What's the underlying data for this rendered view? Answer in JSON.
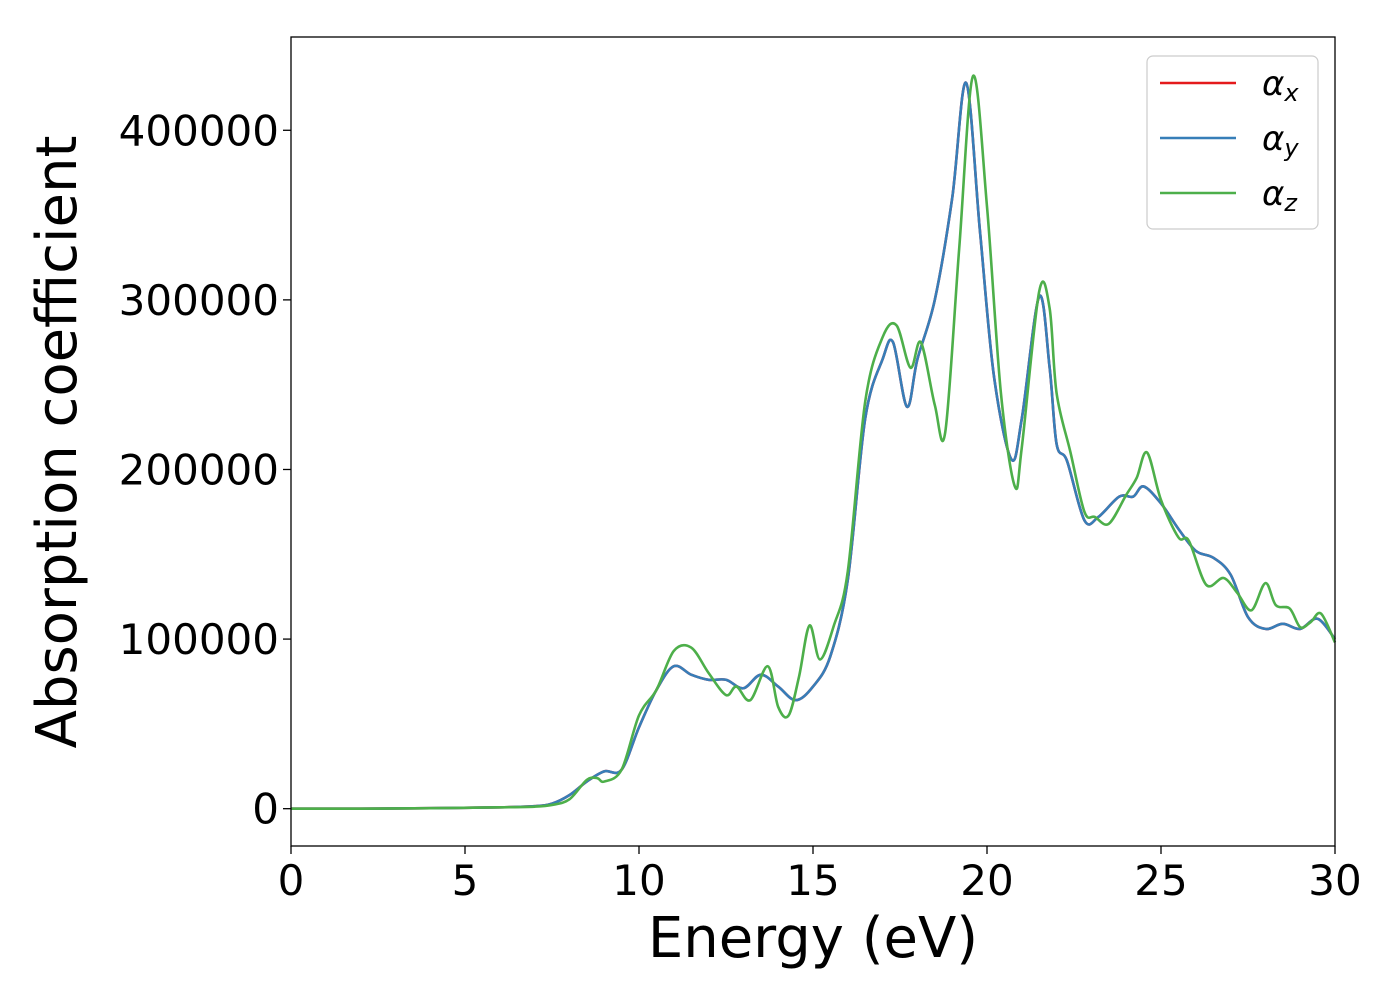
{
  "chart_data": {
    "type": "line",
    "title": "",
    "xlabel": "Energy (eV)",
    "ylabel": "Absorption coefficient",
    "xlim": [
      0,
      30
    ],
    "ylim": [
      -22000,
      455000
    ],
    "xticks": [
      0,
      5,
      10,
      15,
      20,
      25,
      30
    ],
    "yticks": [
      0,
      100000,
      200000,
      300000,
      400000
    ],
    "grid": false,
    "legend_position": "top-right",
    "series": [
      {
        "name": "α",
        "subscript": "x",
        "color": "#e41a1c",
        "x": [
          0,
          2,
          4,
          6,
          7,
          7.5,
          8,
          8.5,
          9,
          9.5,
          10,
          10.5,
          11,
          11.5,
          12,
          12.5,
          13,
          13.5,
          14,
          14.5,
          15,
          15.5,
          16,
          16.5,
          17,
          17.3,
          17.7,
          18,
          18.5,
          19,
          19.4,
          19.8,
          20.2,
          20.7,
          21,
          21.5,
          21.8,
          22,
          22.3,
          22.8,
          23.2,
          23.8,
          24.2,
          24.5,
          25,
          25.5,
          26,
          26.5,
          27,
          27.5,
          28,
          28.5,
          29,
          29.5,
          30
        ],
        "y": [
          0,
          0,
          300,
          800,
          1500,
          3000,
          8000,
          16000,
          22000,
          23000,
          48000,
          70000,
          84000,
          79000,
          76000,
          76000,
          71000,
          79000,
          72000,
          64000,
          72000,
          90000,
          135000,
          230000,
          265000,
          275000,
          237000,
          265000,
          300000,
          360000,
          428000,
          340000,
          255000,
          206000,
          230000,
          302000,
          260000,
          215000,
          205000,
          170000,
          172000,
          184000,
          184000,
          190000,
          180000,
          165000,
          152000,
          148000,
          138000,
          113000,
          106000,
          109000,
          106000,
          112000,
          100000
        ]
      },
      {
        "name": "α",
        "subscript": "y",
        "color": "#377eb8",
        "x": [
          0,
          2,
          4,
          6,
          7,
          7.5,
          8,
          8.5,
          9,
          9.5,
          10,
          10.5,
          11,
          11.5,
          12,
          12.5,
          13,
          13.5,
          14,
          14.5,
          15,
          15.5,
          16,
          16.5,
          17,
          17.3,
          17.7,
          18,
          18.5,
          19,
          19.4,
          19.8,
          20.2,
          20.7,
          21,
          21.5,
          21.8,
          22,
          22.3,
          22.8,
          23.2,
          23.8,
          24.2,
          24.5,
          25,
          25.5,
          26,
          26.5,
          27,
          27.5,
          28,
          28.5,
          29,
          29.5,
          30
        ],
        "y": [
          0,
          0,
          300,
          800,
          1500,
          3000,
          8000,
          16000,
          22000,
          23000,
          48000,
          70000,
          84000,
          79000,
          76000,
          76000,
          71000,
          79000,
          72000,
          64000,
          72000,
          90000,
          135000,
          230000,
          265000,
          275000,
          237000,
          265000,
          300000,
          360000,
          428000,
          340000,
          255000,
          206000,
          230000,
          302000,
          260000,
          215000,
          205000,
          170000,
          172000,
          184000,
          184000,
          190000,
          180000,
          165000,
          152000,
          148000,
          138000,
          113000,
          106000,
          109000,
          106000,
          112000,
          100000
        ]
      },
      {
        "name": "α",
        "subscript": "z",
        "color": "#4daf4a",
        "x": [
          0,
          2,
          4,
          6,
          7,
          7.5,
          8,
          8.5,
          8.8,
          9,
          9.5,
          10,
          10.5,
          11,
          11.5,
          12,
          12.5,
          12.8,
          13.2,
          13.7,
          14,
          14.3,
          14.6,
          14.9,
          15.2,
          15.6,
          16,
          16.5,
          17,
          17.4,
          17.8,
          18.1,
          18.5,
          18.8,
          19.2,
          19.6,
          20,
          20.4,
          20.8,
          21,
          21.5,
          21.8,
          22,
          22.4,
          22.8,
          23.1,
          23.5,
          24,
          24.3,
          24.6,
          25,
          25.5,
          25.8,
          26.3,
          26.8,
          27.2,
          27.6,
          28,
          28.3,
          28.7,
          29,
          29.3,
          29.6,
          30
        ],
        "y": [
          0,
          0,
          300,
          800,
          1200,
          2200,
          5500,
          17000,
          18000,
          16000,
          23000,
          55000,
          70000,
          93000,
          95000,
          80000,
          67000,
          72000,
          64000,
          84000,
          60000,
          55000,
          78000,
          108000,
          88000,
          108000,
          140000,
          240000,
          278000,
          285000,
          260000,
          275000,
          238000,
          222000,
          330000,
          432000,
          355000,
          245000,
          190000,
          213000,
          305000,
          295000,
          245000,
          210000,
          175000,
          172000,
          168000,
          185000,
          195000,
          210000,
          182000,
          160000,
          158000,
          132000,
          136000,
          127000,
          117000,
          133000,
          120000,
          118000,
          107000,
          110000,
          115000,
          98000
        ]
      }
    ]
  }
}
